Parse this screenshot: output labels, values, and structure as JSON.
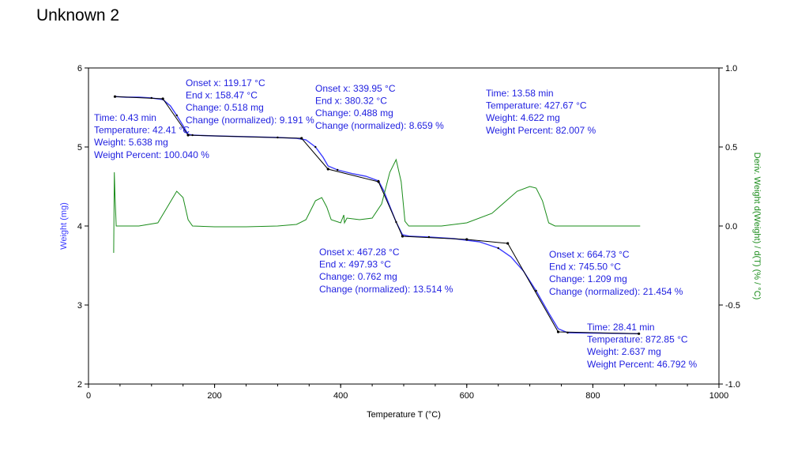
{
  "page": {
    "title": "Unknown 2"
  },
  "chart_data": {
    "type": "line",
    "title": "Unknown 2",
    "xlabel": "Temperature T (°C)",
    "ylabel": "Weight (mg)",
    "y2label": "Deriv. Weight d(Weight) / d(T) (% / °C)",
    "xlim": [
      0,
      1000
    ],
    "ylim": [
      2,
      6
    ],
    "y2lim": [
      -1.0,
      1.0
    ],
    "x_ticks": [
      0,
      200,
      400,
      600,
      800,
      1000
    ],
    "y_ticks": [
      2,
      3,
      4,
      5,
      6
    ],
    "y2_ticks": [
      "-1.0",
      "-0.5",
      "0.0",
      "0.5",
      "1.0"
    ],
    "colors": {
      "weight": "#3a3aff",
      "deriv": "#1a8c1a",
      "fit": "#000000",
      "text": "#1f1fe0"
    },
    "series": [
      {
        "name": "Weight",
        "axis": "left",
        "x": [
          42,
          60,
          80,
          100,
          118,
          130,
          140,
          150,
          158,
          165,
          200,
          250,
          300,
          330,
          345,
          360,
          372,
          380,
          395,
          420,
          440,
          460,
          468,
          478,
          488,
          498,
          510,
          540,
          580,
          620,
          650,
          670,
          690,
          710,
          730,
          745,
          760,
          800,
          873
        ],
        "values": [
          5.638,
          5.63,
          5.63,
          5.62,
          5.6,
          5.52,
          5.4,
          5.27,
          5.16,
          5.15,
          5.14,
          5.13,
          5.12,
          5.11,
          5.09,
          5.0,
          4.87,
          4.76,
          4.71,
          4.66,
          4.63,
          4.57,
          4.45,
          4.25,
          4.05,
          3.89,
          3.87,
          3.86,
          3.84,
          3.8,
          3.72,
          3.61,
          3.43,
          3.18,
          2.9,
          2.7,
          2.65,
          2.645,
          2.637
        ]
      },
      {
        "name": "Deriv. Weight",
        "axis": "right",
        "x": [
          40,
          41,
          42,
          44,
          50,
          80,
          110,
          125,
          140,
          150,
          158,
          165,
          200,
          250,
          300,
          330,
          345,
          360,
          370,
          378,
          385,
          400,
          405,
          406,
          410,
          430,
          450,
          465,
          478,
          488,
          496,
          502,
          508,
          520,
          560,
          600,
          640,
          680,
          700,
          710,
          720,
          730,
          740,
          800,
          875
        ],
        "values": [
          -0.17,
          0.34,
          0.2,
          0.0,
          0.0,
          0.0,
          0.02,
          0.12,
          0.22,
          0.18,
          0.04,
          0.0,
          -0.005,
          -0.005,
          0.0,
          0.01,
          0.04,
          0.16,
          0.18,
          0.12,
          0.04,
          0.02,
          0.07,
          0.02,
          0.05,
          0.04,
          0.05,
          0.14,
          0.34,
          0.42,
          0.28,
          0.03,
          0.0,
          0.0,
          0.0,
          0.02,
          0.08,
          0.22,
          0.25,
          0.24,
          0.16,
          0.02,
          0.0,
          0.0,
          0.0
        ]
      },
      {
        "name": "Tangent fit",
        "axis": "left",
        "x": [
          42,
          118,
          158,
          338,
          380,
          460,
          498,
          600,
          665,
          745,
          873
        ],
        "values": [
          5.638,
          5.61,
          5.15,
          5.11,
          4.72,
          4.56,
          3.87,
          3.83,
          3.78,
          2.66,
          2.637
        ]
      }
    ],
    "annotations": [
      {
        "lines": [
          "Onset x: 119.17 °C",
          "End x: 158.47 °C",
          "Change: 0.518 mg",
          "Change (normalized): 9.191 %"
        ]
      },
      {
        "lines": [
          "Time: 0.43 min",
          "Temperature: 42.41 °C",
          "Weight: 5.638 mg",
          "Weight Percent: 100.040 %"
        ]
      },
      {
        "lines": [
          "Onset x: 339.95 °C",
          "End x: 380.32 °C",
          "Change: 0.488 mg",
          "Change (normalized): 8.659 %"
        ]
      },
      {
        "lines": [
          "Time: 13.58 min",
          "Temperature: 427.67 °C",
          "Weight: 4.622 mg",
          "Weight Percent: 82.007 %"
        ]
      },
      {
        "lines": [
          "Onset x: 467.28 °C",
          "End x: 497.93 °C",
          "Change: 0.762 mg",
          "Change (normalized): 13.514 %"
        ]
      },
      {
        "lines": [
          "Onset x: 664.73 °C",
          "End x: 745.50 °C",
          "Change: 1.209 mg",
          "Change (normalized): 21.454 %"
        ]
      },
      {
        "lines": [
          "Time: 28.41 min",
          "Temperature: 872.85 °C",
          "Weight: 2.637 mg",
          "Weight Percent: 46.792 %"
        ]
      }
    ]
  }
}
